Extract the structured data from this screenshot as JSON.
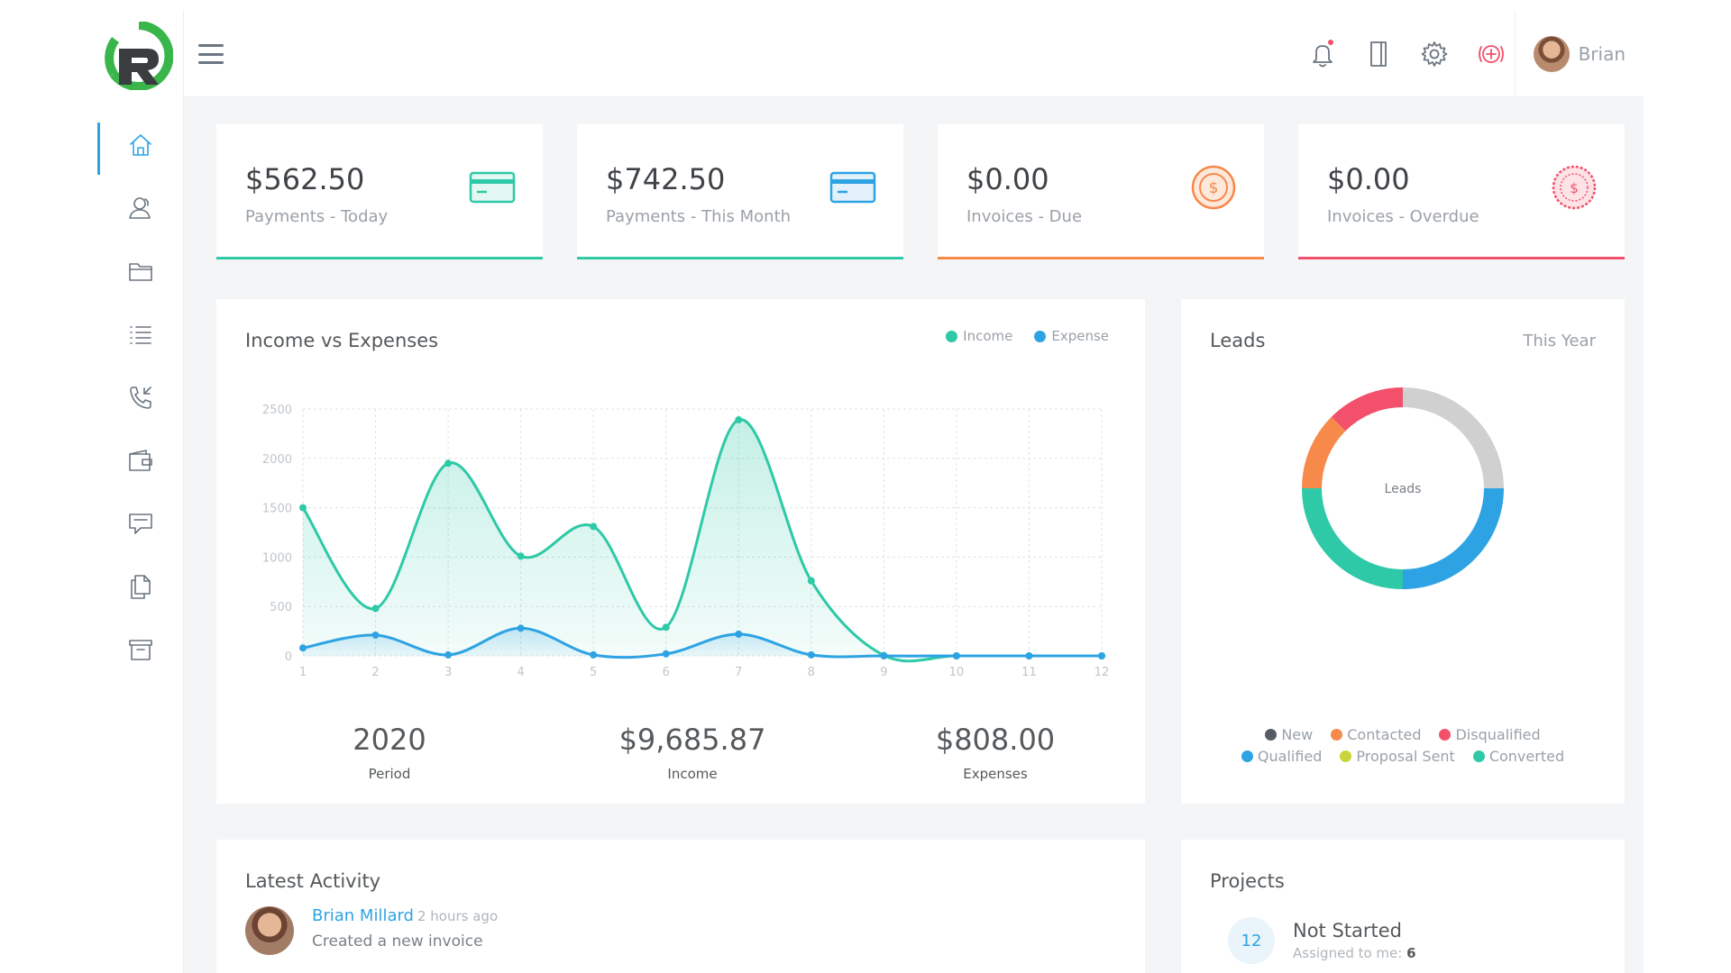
{
  "user": {
    "name": "Brian"
  },
  "nav": {
    "items": [
      {
        "icon": "home-icon",
        "active": true
      },
      {
        "icon": "users-icon"
      },
      {
        "icon": "folder-icon"
      },
      {
        "icon": "list-icon"
      },
      {
        "icon": "phone-incoming-icon"
      },
      {
        "icon": "wallet-icon"
      },
      {
        "icon": "chat-icon"
      },
      {
        "icon": "documents-icon"
      },
      {
        "icon": "archive-icon"
      }
    ]
  },
  "topbar": {
    "icons": [
      "bell-icon",
      "notebook-icon",
      "gear-icon",
      "life-ring-icon"
    ]
  },
  "stats": [
    {
      "amount": "$562.50",
      "label": "Payments - Today",
      "icon": "credit-card-icon",
      "color": "#2ec9a7"
    },
    {
      "amount": "$742.50",
      "label": "Payments - This Month",
      "icon": "credit-card-icon",
      "color": "#2ec9a7"
    },
    {
      "amount": "$0.00",
      "label": "Invoices - Due",
      "icon": "dollar-coin-icon",
      "color": "#f7894a"
    },
    {
      "amount": "$0.00",
      "label": "Invoices - Overdue",
      "icon": "dollar-coin-icon",
      "color": "#f2506b"
    }
  ],
  "income_chart": {
    "title": "Income vs Expenses",
    "summary": [
      {
        "value": "2020",
        "label": "Period"
      },
      {
        "value": "$9,685.87",
        "label": "Income"
      },
      {
        "value": "$808.00",
        "label": "Expenses"
      }
    ]
  },
  "leads": {
    "title": "Leads",
    "filter": "This Year",
    "center_label": "Leads"
  },
  "activity": {
    "title": "Latest Activity",
    "items": [
      {
        "name": "Brian Millard",
        "time": "2 hours ago",
        "desc": "Created a new invoice"
      }
    ]
  },
  "projects": {
    "title": "Projects",
    "items": [
      {
        "count": "12",
        "title": "Not Started",
        "sub_label": "Assigned to me:",
        "sub_value": "6"
      }
    ]
  },
  "chart_data": [
    {
      "type": "area",
      "title": "Income vs Expenses",
      "x": [
        1,
        2,
        3,
        4,
        5,
        6,
        7,
        8,
        9,
        10,
        11,
        12
      ],
      "ylim": [
        0,
        2500
      ],
      "yticks": [
        0,
        500,
        1000,
        1500,
        2000,
        2500
      ],
      "grid": true,
      "legend": "top-right",
      "series": [
        {
          "name": "Income",
          "color": "#2ec9a7",
          "values": [
            1500,
            480,
            1950,
            1010,
            1310,
            290,
            2390,
            760,
            5,
            0,
            0,
            0
          ]
        },
        {
          "name": "Expense",
          "color": "#2ea3e3",
          "values": [
            80,
            210,
            10,
            280,
            10,
            20,
            220,
            10,
            0,
            0,
            0,
            0
          ]
        }
      ]
    },
    {
      "type": "pie",
      "title": "Leads",
      "legend": "bottom",
      "labels": [
        "New",
        "Contacted",
        "Disqualified",
        "Qualified",
        "Proposal Sent",
        "Converted"
      ],
      "colors": [
        "#555c63",
        "#f7894a",
        "#f2506b",
        "#2ea3e3",
        "#c8d63a",
        "#2ec9a7"
      ],
      "slices": [
        {
          "label": "unlabeled",
          "value": 25,
          "color": "#d0d0d0"
        },
        {
          "label": "Qualified",
          "value": 25,
          "color": "#2ea3e3"
        },
        {
          "label": "Converted",
          "value": 25,
          "color": "#2ec9a7"
        },
        {
          "label": "Contacted",
          "value": 12.5,
          "color": "#f7894a"
        },
        {
          "label": "Disqualified",
          "value": 12.5,
          "color": "#f2506b"
        }
      ]
    }
  ]
}
